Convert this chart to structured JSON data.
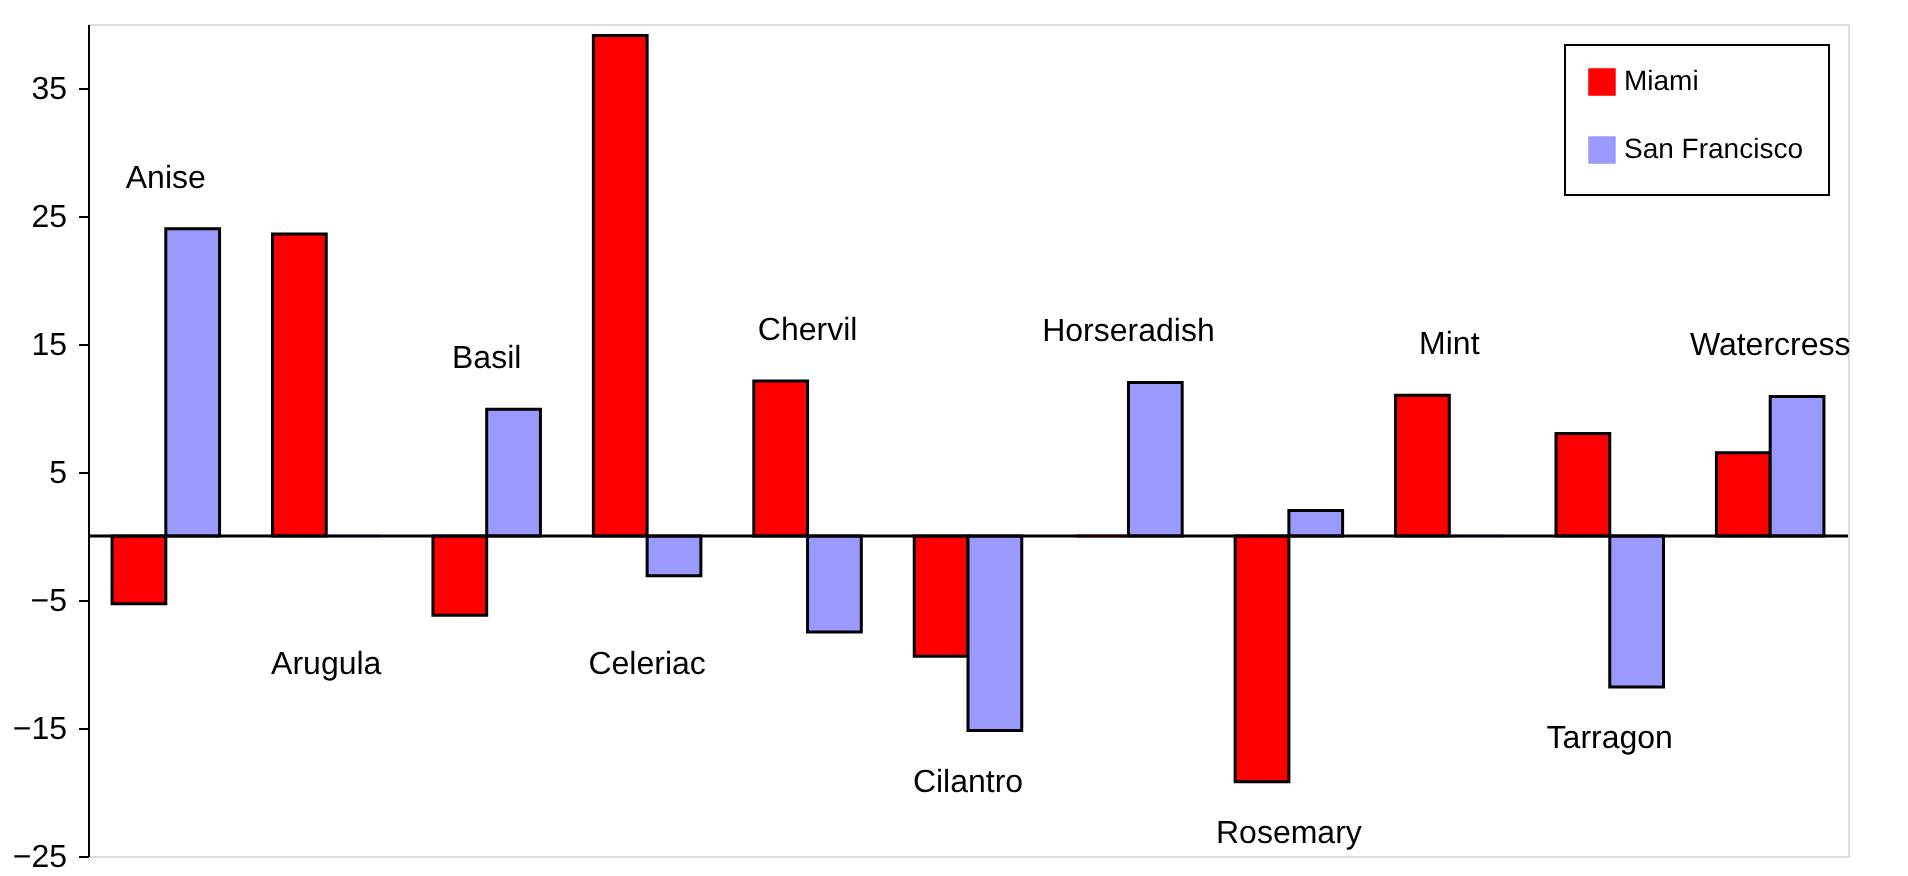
{
  "chart_data": {
    "type": "bar",
    "categories": [
      "Anise",
      "Arugula",
      "Basil",
      "Celeriac",
      "Chervil",
      "Cilantro",
      "Horseradish",
      "Rosemary",
      "Mint",
      "Tarragon",
      "Watercress"
    ],
    "series": [
      {
        "name": "Miami",
        "color": "#ff0000",
        "values": [
          -5.3,
          23.6,
          -6.2,
          39.1,
          12.1,
          -9.4,
          0,
          -19.2,
          11.0,
          8.0,
          6.5
        ]
      },
      {
        "name": "San Francisco",
        "color": "#9999ff",
        "values": [
          24.0,
          0,
          9.9,
          -3.1,
          -7.5,
          -15.2,
          12.0,
          2.0,
          0,
          -11.8,
          10.9
        ]
      }
    ],
    "ylim": [
      -25,
      40
    ],
    "yticks": [
      -25,
      -15,
      -5,
      5,
      15,
      25,
      35
    ],
    "grid": false,
    "legend": "top right",
    "tick_labels": "y"
  }
}
